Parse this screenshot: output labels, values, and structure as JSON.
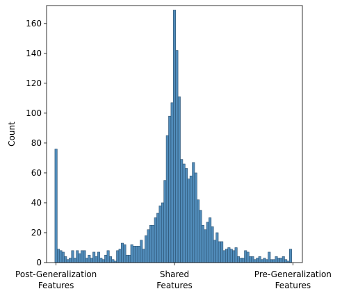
{
  "chart_data": {
    "type": "bar",
    "title": "",
    "xlabel": "",
    "ylabel": "Count",
    "ylim": [
      0,
      172
    ],
    "yticks": [
      0,
      20,
      40,
      60,
      80,
      100,
      120,
      140,
      160
    ],
    "xticks": [
      {
        "position": 0,
        "label": [
          "Post-Generalization",
          "Features"
        ]
      },
      {
        "position": 0.5,
        "label": [
          "Shared",
          "Features"
        ]
      },
      {
        "position": 1,
        "label": [
          "Pre-Generalization",
          "Features"
        ]
      }
    ],
    "xlim": [
      -0.04,
      1.04
    ],
    "bin_start": -0.005,
    "bin_width": 0.01,
    "grid": false,
    "bar_color": "#4282b4",
    "edge_color": "#2a4f6e",
    "values": [
      76,
      9,
      8,
      7,
      4,
      2,
      3,
      8,
      3,
      8,
      6,
      8,
      8,
      3,
      5,
      3,
      7,
      4,
      7,
      3,
      2,
      5,
      8,
      4,
      2,
      1,
      8,
      9,
      13,
      12,
      5,
      5,
      12,
      11,
      11,
      11,
      15,
      9,
      18,
      22,
      25,
      25,
      30,
      33,
      38,
      40,
      55,
      85,
      98,
      107,
      169,
      142,
      111,
      69,
      66,
      63,
      56,
      58,
      67,
      60,
      42,
      35,
      25,
      22,
      27,
      30,
      24,
      15,
      20,
      14,
      14,
      8,
      9,
      10,
      9,
      8,
      10,
      4,
      3,
      3,
      8,
      7,
      4,
      4,
      2,
      3,
      4,
      2,
      3,
      2,
      7,
      2,
      2,
      4,
      3,
      3,
      4,
      2,
      1,
      9
    ]
  }
}
